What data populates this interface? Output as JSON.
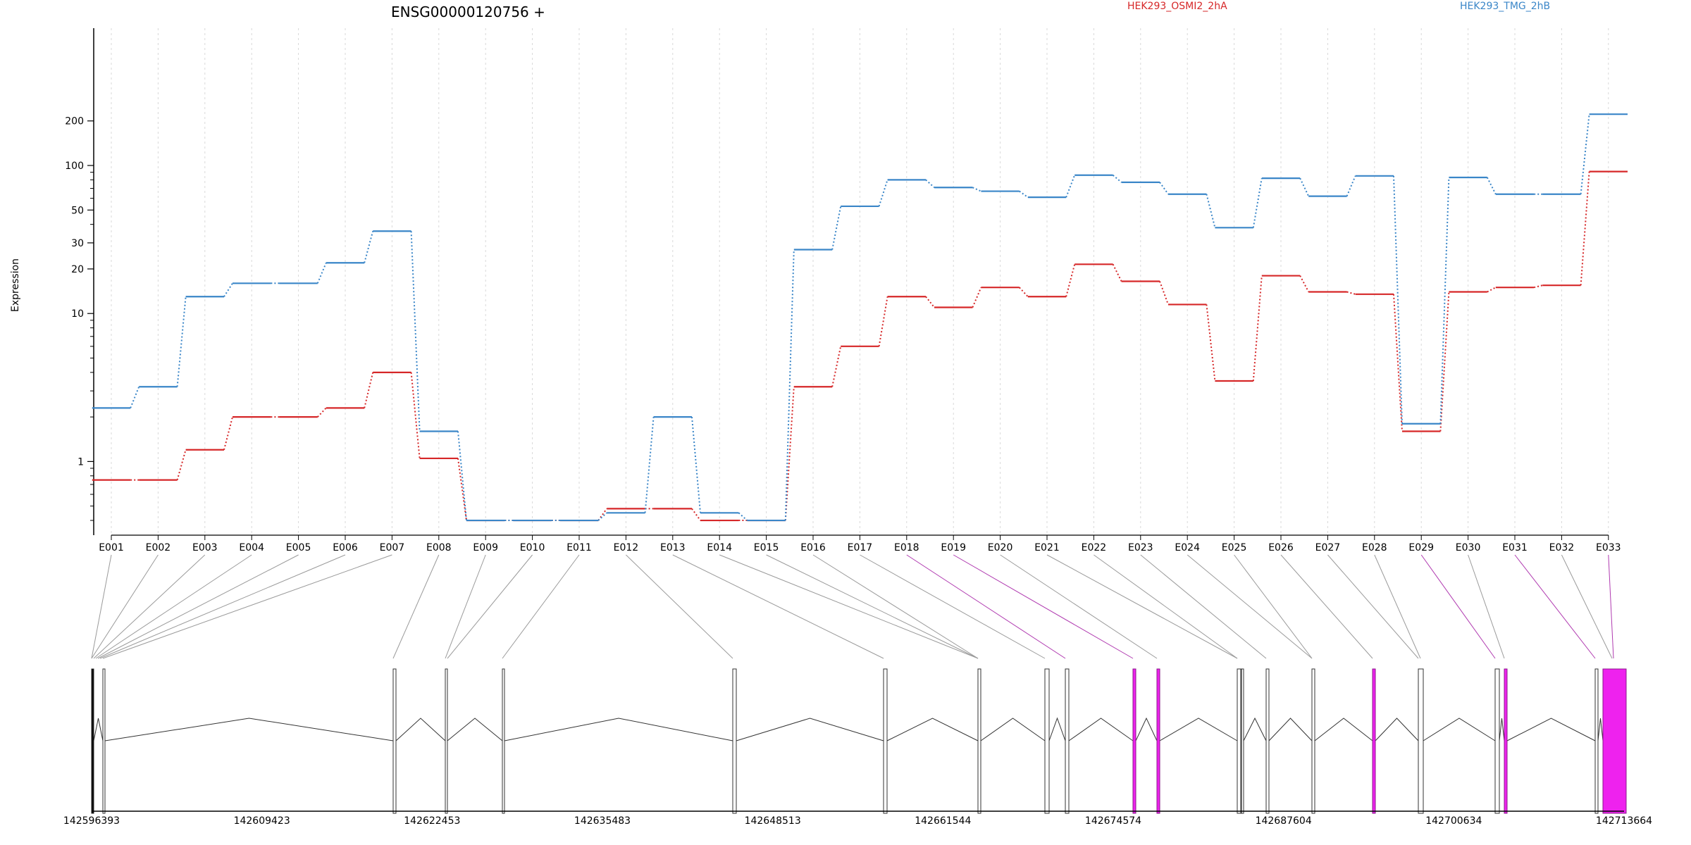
{
  "title": "ENSG00000120756 +",
  "chart_data": {
    "type": "line",
    "ylabel": "Expression",
    "yscale": "log",
    "grid": "vertical dotted at exon bins",
    "legend_placement": "top",
    "y_ticks": [
      "1",
      "10",
      "20",
      "30",
      "50",
      "100",
      "200"
    ],
    "categories": [
      "E001",
      "E002",
      "E003",
      "E004",
      "E005",
      "E006",
      "E007",
      "E008",
      "E009",
      "E010",
      "E011",
      "E012",
      "E013",
      "E014",
      "E015",
      "E016",
      "E017",
      "E018",
      "E019",
      "E020",
      "E021",
      "E022",
      "E023",
      "E024",
      "E025",
      "E026",
      "E027",
      "E028",
      "E029",
      "E030",
      "E031",
      "E032",
      "E033"
    ],
    "series": [
      {
        "name": "HEK293_OSMI2_2hA",
        "color": "#d62728",
        "values": [
          0.75,
          0.75,
          1.2,
          2.0,
          2.0,
          2.3,
          4.0,
          1.05,
          0.4,
          0.4,
          0.4,
          0.48,
          0.48,
          0.4,
          0.4,
          3.2,
          6.0,
          13,
          11,
          15,
          13,
          21.5,
          16.5,
          11.5,
          3.5,
          18,
          14,
          13.5,
          1.6,
          14,
          15,
          15.5,
          91
        ]
      },
      {
        "name": "HEK293_TMG_2hB",
        "color": "#3a86c8",
        "values": [
          2.3,
          3.2,
          13,
          16,
          16,
          22,
          36,
          1.6,
          0.4,
          0.4,
          0.4,
          0.45,
          2.0,
          0.45,
          0.4,
          27,
          53,
          80,
          71,
          67,
          61,
          86,
          77,
          64,
          38,
          82,
          62,
          85,
          1.8,
          83,
          64,
          64,
          222
        ]
      }
    ],
    "genomic_ticks": [
      "142596393",
      "142609423",
      "142622453",
      "142635483",
      "142648513",
      "142661544",
      "142674574",
      "142687604",
      "142700634",
      "142713664"
    ],
    "highlighted_exons": [
      "E018",
      "E019",
      "E029",
      "E031",
      "E033"
    ],
    "highlight_color": "#ee22ee"
  }
}
